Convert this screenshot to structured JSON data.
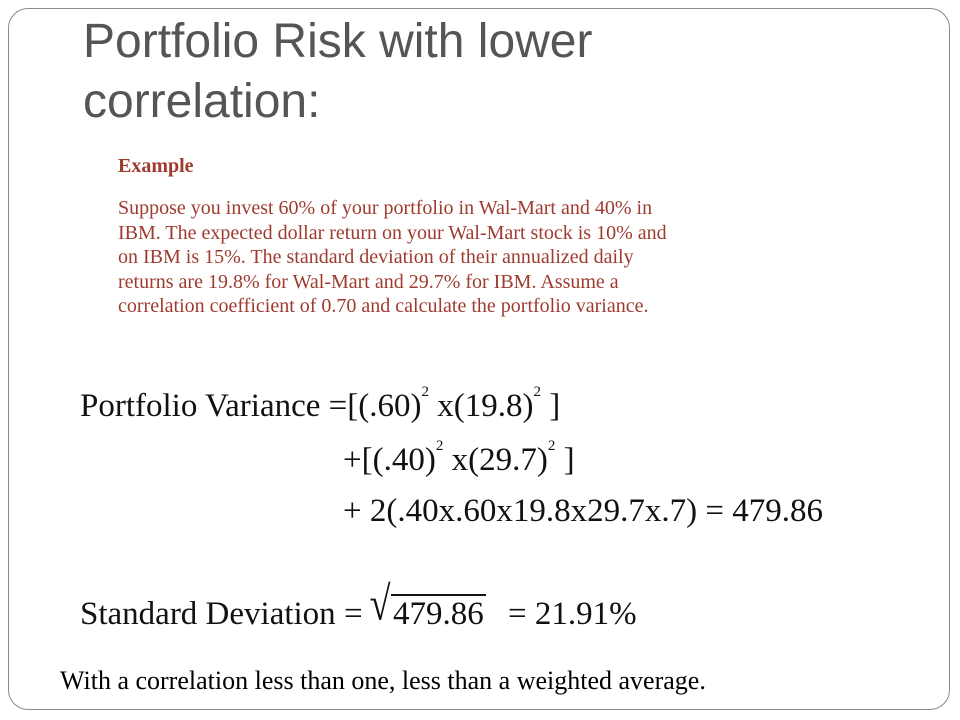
{
  "title": {
    "line1": "Portfolio Risk with lower",
    "line2": "correlation:"
  },
  "example": {
    "heading": "Example",
    "lines": [
      "Suppose you invest 60% of your portfolio in Wal-Mart and 40% in",
      "IBM.  The expected dollar return on your Wal-Mart stock is 10% and",
      "on IBM is 15%. The standard deviation of their annualized daily",
      "returns are 19.8% for Wal-Mart and 29.7% for IBM.  Assume a",
      "correlation coefficient of 0.70 and calculate the portfolio variance."
    ]
  },
  "equations": {
    "variance_label": "Portfolio  Variance",
    "eq": "=",
    "open_bracket": "[",
    "close_bracket": "]",
    "term1_w": "(.60)",
    "term1_sd": "x(19.8)",
    "exp": "2",
    "plus": "+",
    "term2_w": "(.40)",
    "term2_sd": "x(29.7)",
    "term3": "2(.40x.60x19.8x29.7x.7)",
    "variance_result": "479.86",
    "sd_label": "Standard  Deviation",
    "sqrt_sign": "√",
    "radicand": "479.86",
    "sd_result": "21.91",
    "percent": "%"
  },
  "conclusion": "With a correlation less than one, less than a weighted average.",
  "colors": {
    "title": "#555555",
    "example_text": "#9e3a2e",
    "frame_border": "#8a8a8a"
  }
}
